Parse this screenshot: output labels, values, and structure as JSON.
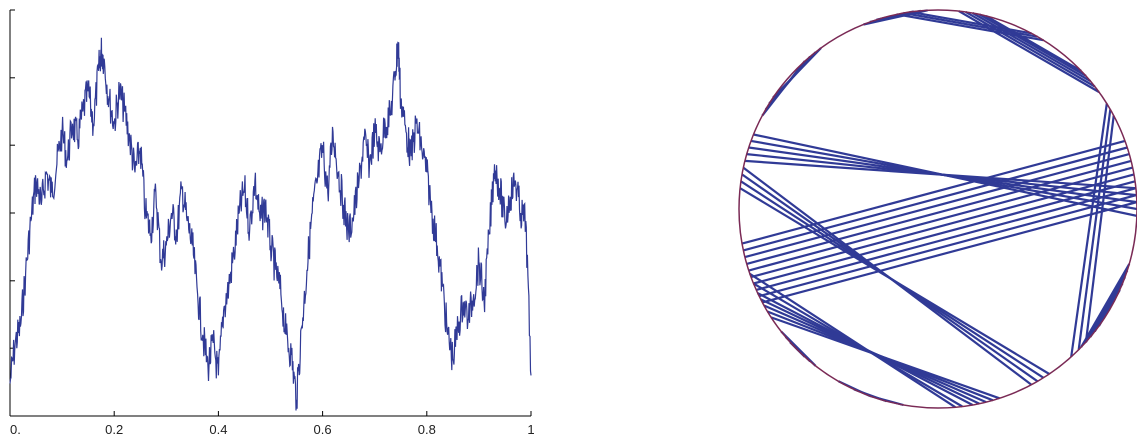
{
  "chart_data": [
    {
      "type": "line",
      "title": "",
      "xlabel": "",
      "ylabel": "",
      "xlim": [
        0,
        1
      ],
      "ylim": [
        0,
        1
      ],
      "x_tick_labels": [
        "0.",
        "0.2",
        "0.4",
        "0.6",
        "0.8",
        "1"
      ],
      "x_tick_values": [
        0,
        0.2,
        0.4,
        0.6,
        0.8,
        1
      ],
      "y_ticks": [
        0,
        0.167,
        0.333,
        0.5,
        0.667,
        0.833,
        1
      ],
      "y_tick_labels_shown": false,
      "line_color": "#303a96",
      "series": [
        {
          "x": [
            0,
            0.01,
            0.02,
            0.03,
            0.04,
            0.05,
            0.06,
            0.07,
            0.08,
            0.09,
            0.1,
            0.11,
            0.12,
            0.13,
            0.14,
            0.15,
            0.16,
            0.17,
            0.175,
            0.18,
            0.19,
            0.2,
            0.21,
            0.22,
            0.23,
            0.24,
            0.25,
            0.26,
            0.27,
            0.28,
            0.29,
            0.3,
            0.31,
            0.32,
            0.33,
            0.34,
            0.35,
            0.36,
            0.37,
            0.38,
            0.39,
            0.4,
            0.41,
            0.42,
            0.43,
            0.44,
            0.45,
            0.46,
            0.47,
            0.48,
            0.49,
            0.5,
            0.51,
            0.52,
            0.53,
            0.54,
            0.55,
            0.56,
            0.57,
            0.58,
            0.59,
            0.6,
            0.61,
            0.62,
            0.63,
            0.64,
            0.65,
            0.66,
            0.67,
            0.68,
            0.69,
            0.7,
            0.71,
            0.72,
            0.73,
            0.74,
            0.745,
            0.75,
            0.76,
            0.77,
            0.78,
            0.79,
            0.8,
            0.81,
            0.82,
            0.83,
            0.84,
            0.85,
            0.86,
            0.87,
            0.88,
            0.89,
            0.9,
            0.91,
            0.92,
            0.93,
            0.94,
            0.95,
            0.96,
            0.97,
            0.98,
            0.99,
            1.0
          ],
          "y": [
            0.08,
            0.18,
            0.22,
            0.35,
            0.48,
            0.58,
            0.52,
            0.6,
            0.55,
            0.62,
            0.7,
            0.63,
            0.72,
            0.68,
            0.75,
            0.8,
            0.72,
            0.85,
            0.9,
            0.88,
            0.78,
            0.72,
            0.8,
            0.75,
            0.68,
            0.6,
            0.66,
            0.5,
            0.45,
            0.55,
            0.38,
            0.42,
            0.5,
            0.45,
            0.56,
            0.48,
            0.42,
            0.3,
            0.2,
            0.12,
            0.18,
            0.1,
            0.26,
            0.32,
            0.4,
            0.5,
            0.56,
            0.46,
            0.58,
            0.48,
            0.52,
            0.42,
            0.36,
            0.3,
            0.2,
            0.15,
            0.04,
            0.22,
            0.36,
            0.5,
            0.58,
            0.66,
            0.55,
            0.7,
            0.6,
            0.52,
            0.45,
            0.5,
            0.58,
            0.68,
            0.62,
            0.7,
            0.65,
            0.72,
            0.74,
            0.85,
            0.92,
            0.78,
            0.7,
            0.64,
            0.72,
            0.66,
            0.6,
            0.5,
            0.42,
            0.32,
            0.2,
            0.14,
            0.22,
            0.28,
            0.24,
            0.3,
            0.38,
            0.28,
            0.45,
            0.62,
            0.56,
            0.48,
            0.54,
            0.58,
            0.5,
            0.48,
            0.1
          ]
        }
      ]
    },
    {
      "type": "chord-diagram",
      "title": "",
      "circle_color": "#7a2a55",
      "chord_color": "#303a96",
      "chords_deg": [
        [
          280,
          205
        ],
        [
          282,
          207
        ],
        [
          284,
          209
        ],
        [
          286,
          211
        ],
        [
          288,
          213
        ],
        [
          277,
          202
        ],
        [
          275,
          199
        ],
        [
          160,
          0
        ],
        [
          162,
          2
        ],
        [
          164,
          4
        ],
        [
          158,
          358
        ],
        [
          166,
          6
        ],
        [
          200,
          10
        ],
        [
          198,
          12
        ],
        [
          202,
          8
        ],
        [
          196,
          14
        ],
        [
          204,
          6
        ],
        [
          194,
          16
        ],
        [
          206,
          4
        ],
        [
          192,
          18
        ],
        [
          208,
          2
        ],
        [
          190,
          20
        ],
        [
          150,
          130
        ],
        [
          148,
          128
        ],
        [
          146,
          126
        ],
        [
          152,
          132
        ],
        [
          80,
          40
        ],
        [
          78,
          42
        ],
        [
          82,
          38
        ],
        [
          76,
          44
        ],
        [
          84,
          36
        ],
        [
          100,
          60
        ],
        [
          102,
          58
        ],
        [
          98,
          62
        ],
        [
          300,
          170
        ],
        [
          302,
          172
        ],
        [
          298,
          168
        ],
        [
          304,
          174
        ],
        [
          315,
          30
        ],
        [
          318,
          28
        ],
        [
          312,
          32
        ],
        [
          340,
          320
        ],
        [
          342,
          318
        ],
        [
          338,
          322
        ],
        [
          344,
          316
        ],
        [
          336,
          324
        ],
        [
          255,
          245
        ],
        [
          250,
          240
        ],
        [
          260,
          250
        ],
        [
          110,
          95
        ],
        [
          112,
          93
        ],
        [
          108,
          97
        ],
        [
          230,
          220
        ],
        [
          232,
          218
        ],
        [
          228,
          222
        ]
      ]
    }
  ]
}
